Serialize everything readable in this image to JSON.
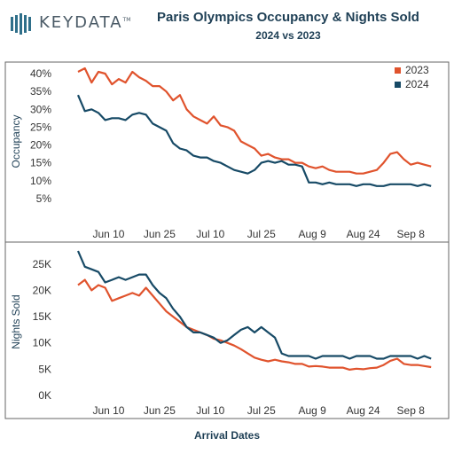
{
  "logo": {
    "text": "KEYDATA",
    "mark": "TM",
    "bars_icon": "keydata-bars-icon"
  },
  "title": "Paris Olympics Occupancy & Nights Sold",
  "subtitle": "2024 vs 2023",
  "xlabel": "Arrival Dates",
  "colors": {
    "y2023": "#e0532d",
    "y2024": "#174a66",
    "frame": "#666666",
    "text": "#1e3f55"
  },
  "chart_data": [
    {
      "type": "line",
      "ylabel": "Occupancy",
      "ylim": [
        0,
        42
      ],
      "yticks": [
        5,
        10,
        15,
        20,
        25,
        30,
        35,
        40
      ],
      "ytick_labels": [
        "5%",
        "10%",
        "15%",
        "20%",
        "25%",
        "30%",
        "35%",
        "40%"
      ],
      "xlim": [
        0,
        105
      ],
      "xticks": [
        9,
        24,
        39,
        54,
        69,
        84,
        98
      ],
      "xtick_labels": [
        "Jun 10",
        "Jun 25",
        "Jul 10",
        "Jul 25",
        "Aug 9",
        "Aug 24",
        "Sep 8"
      ],
      "legend": "top-right",
      "series": [
        {
          "name": "2023",
          "color": "#e0532d",
          "x": [
            0,
            2,
            4,
            6,
            8,
            10,
            12,
            14,
            16,
            18,
            20,
            22,
            24,
            26,
            28,
            30,
            32,
            34,
            36,
            38,
            40,
            42,
            44,
            46,
            48,
            50,
            52,
            54,
            56,
            58,
            60,
            62,
            64,
            66,
            68,
            70,
            72,
            74,
            76,
            78,
            80,
            82,
            84,
            86,
            88,
            90,
            92,
            94,
            96,
            98,
            100,
            102,
            104
          ],
          "y": [
            40.5,
            41.5,
            37.5,
            40.5,
            40,
            37,
            38.5,
            37.5,
            40.5,
            39,
            38,
            36.5,
            36.5,
            35,
            32.5,
            34,
            30,
            28,
            27,
            26,
            28,
            25.5,
            25,
            24,
            21,
            20,
            19,
            17,
            17.5,
            16.5,
            16,
            16,
            15,
            15,
            14,
            13.5,
            14,
            13,
            12.5,
            12.5,
            12.5,
            12,
            12,
            12.5,
            13,
            15,
            17.5,
            18,
            16,
            14.5,
            15,
            14.5,
            14
          ]
        },
        {
          "name": "2024",
          "color": "#174a66",
          "x": [
            0,
            2,
            4,
            6,
            8,
            10,
            12,
            14,
            16,
            18,
            20,
            22,
            24,
            26,
            28,
            30,
            32,
            34,
            36,
            38,
            40,
            42,
            44,
            46,
            48,
            50,
            52,
            54,
            56,
            58,
            60,
            62,
            64,
            66,
            68,
            70,
            72,
            74,
            76,
            78,
            80,
            82,
            84,
            86,
            88,
            90,
            92,
            94,
            96,
            98,
            100,
            102,
            104
          ],
          "y": [
            34,
            29.5,
            30,
            29,
            27,
            27.5,
            27.5,
            27,
            28.5,
            29,
            28.5,
            26,
            25,
            24,
            20.5,
            19,
            18.5,
            17,
            16.5,
            16.5,
            15.5,
            15,
            14,
            13,
            12.5,
            12,
            13,
            15,
            15.5,
            15,
            15.5,
            14.5,
            14.5,
            14,
            9.5,
            9.5,
            9,
            9.5,
            9,
            9,
            9,
            8.5,
            9,
            9,
            8.5,
            8.5,
            9,
            9,
            9,
            9,
            8.5,
            9,
            8.5
          ]
        }
      ]
    },
    {
      "type": "line",
      "ylabel": "Nights Sold",
      "ylim": [
        0,
        28000
      ],
      "yticks": [
        0,
        5000,
        10000,
        15000,
        20000,
        25000
      ],
      "ytick_labels": [
        "0K",
        "5K",
        "10K",
        "15K",
        "20K",
        "25K"
      ],
      "xlim": [
        0,
        105
      ],
      "xticks": [
        9,
        24,
        39,
        54,
        69,
        84,
        98
      ],
      "xtick_labels": [
        "Jun 10",
        "Jun 25",
        "Jul 10",
        "Jul 25",
        "Aug 9",
        "Aug 24",
        "Sep 8"
      ],
      "series": [
        {
          "name": "2023",
          "color": "#e0532d",
          "x": [
            0,
            2,
            4,
            6,
            8,
            10,
            12,
            14,
            16,
            18,
            20,
            22,
            24,
            26,
            28,
            30,
            32,
            34,
            36,
            38,
            40,
            42,
            44,
            46,
            48,
            50,
            52,
            54,
            56,
            58,
            60,
            62,
            64,
            66,
            68,
            70,
            72,
            74,
            76,
            78,
            80,
            82,
            84,
            86,
            88,
            90,
            92,
            94,
            96,
            98,
            100,
            102,
            104
          ],
          "y": [
            21000,
            22000,
            20000,
            21000,
            20500,
            18000,
            18500,
            19000,
            19500,
            19000,
            20500,
            19000,
            17500,
            16000,
            15000,
            14000,
            13000,
            12500,
            12000,
            11500,
            10800,
            10500,
            10000,
            9500,
            8800,
            8000,
            7200,
            6800,
            6500,
            6800,
            6500,
            6300,
            6000,
            6000,
            5500,
            5600,
            5500,
            5300,
            5300,
            5300,
            4900,
            5100,
            5000,
            5200,
            5300,
            5800,
            6600,
            7000,
            6000,
            5800,
            5800,
            5600,
            5400
          ]
        },
        {
          "name": "2024",
          "color": "#174a66",
          "x": [
            0,
            2,
            4,
            6,
            8,
            10,
            12,
            14,
            16,
            18,
            20,
            22,
            24,
            26,
            28,
            30,
            32,
            34,
            36,
            38,
            40,
            42,
            44,
            46,
            48,
            50,
            52,
            54,
            56,
            58,
            60,
            62,
            64,
            66,
            68,
            70,
            72,
            74,
            76,
            78,
            80,
            82,
            84,
            86,
            88,
            90,
            92,
            94,
            96,
            98,
            100,
            102,
            104
          ],
          "y": [
            27500,
            24500,
            24000,
            23500,
            21500,
            22000,
            22500,
            22000,
            22500,
            23000,
            23000,
            21000,
            19500,
            18500,
            16500,
            15000,
            13000,
            12000,
            12000,
            11500,
            11000,
            10000,
            10500,
            11500,
            12500,
            13000,
            12000,
            13000,
            12000,
            11000,
            8000,
            7500,
            7500,
            7500,
            7500,
            7000,
            7500,
            7500,
            7500,
            7500,
            7000,
            7500,
            7500,
            7500,
            7000,
            7000,
            7500,
            7500,
            7500,
            7500,
            7000,
            7500,
            7000
          ]
        }
      ]
    }
  ]
}
